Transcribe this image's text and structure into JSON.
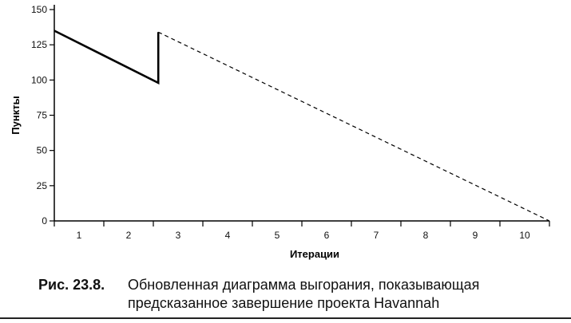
{
  "chart_data": {
    "type": "line",
    "xlabel": "Итерации",
    "ylabel": "Пункты",
    "categories": [
      "1",
      "2",
      "3",
      "4",
      "5",
      "6",
      "7",
      "8",
      "9",
      "10"
    ],
    "xlim": [
      0,
      10
    ],
    "ylim": [
      0,
      150
    ],
    "yticks": [
      0,
      25,
      50,
      75,
      100,
      125,
      150
    ],
    "grid": false,
    "series": [
      {
        "style": "solid",
        "x": [
          0,
          2.1,
          2.1
        ],
        "y": [
          135,
          98,
          134
        ]
      },
      {
        "style": "dashed",
        "x": [
          2.1,
          10.0
        ],
        "y": [
          134,
          0
        ]
      }
    ],
    "colors": {
      "line": "#000000",
      "axis": "#000000"
    }
  },
  "caption": {
    "label": "Рис. 23.8.",
    "line1": "Обновленная диаграмма выгорания, показывающая",
    "line2": "предсказанное завершение проекта Havannah"
  }
}
